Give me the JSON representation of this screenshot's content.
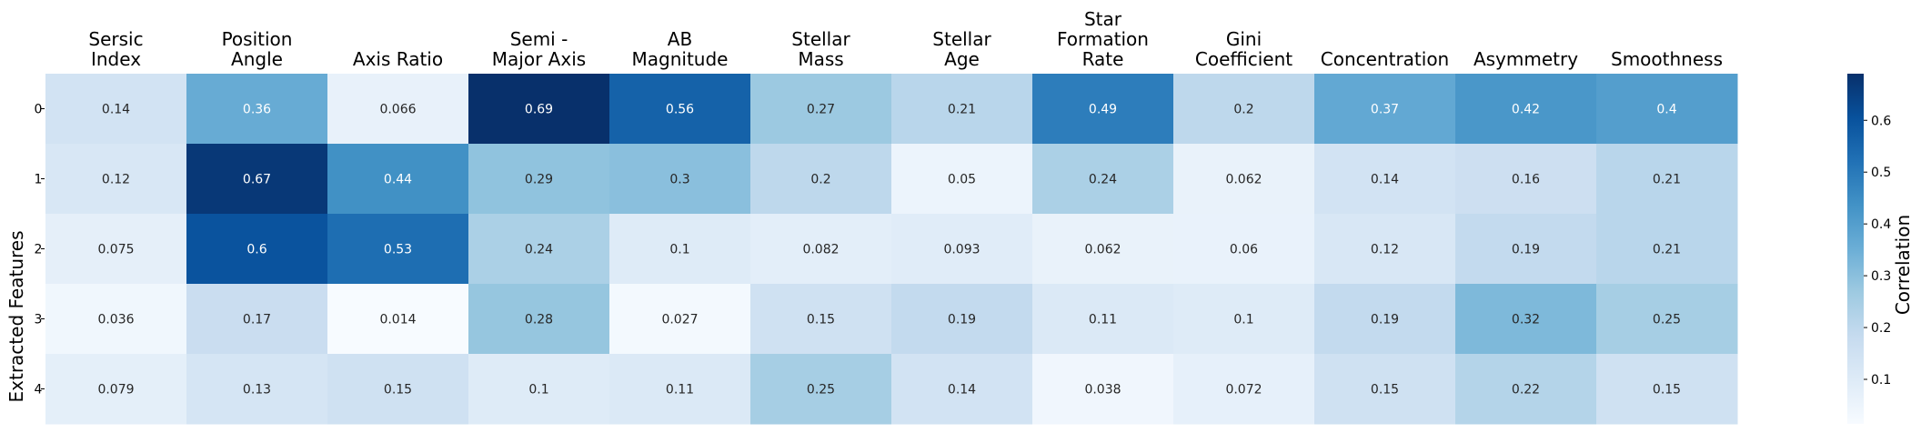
{
  "chart_data": {
    "type": "heatmap",
    "title": "",
    "xlabel": "",
    "ylabel": "Extracted Features",
    "columns": [
      [
        "Sersic",
        "Index"
      ],
      [
        "Position",
        "Angle"
      ],
      [
        "Axis Ratio"
      ],
      [
        "Semi -",
        "Major Axis"
      ],
      [
        "AB",
        "Magnitude"
      ],
      [
        "Stellar",
        "Mass"
      ],
      [
        "Stellar",
        "Age"
      ],
      [
        "Star",
        "Formation",
        "Rate"
      ],
      [
        "Gini",
        "Coefficient"
      ],
      [
        "Concentration"
      ],
      [
        "Asymmetry"
      ],
      [
        "Smoothness"
      ]
    ],
    "rows": [
      "0",
      "1",
      "2",
      "3",
      "4"
    ],
    "values": [
      [
        0.14,
        0.36,
        0.066,
        0.69,
        0.56,
        0.27,
        0.21,
        0.49,
        0.2,
        0.37,
        0.42,
        0.4
      ],
      [
        0.12,
        0.67,
        0.44,
        0.29,
        0.3,
        0.2,
        0.05,
        0.24,
        0.062,
        0.14,
        0.16,
        0.21
      ],
      [
        0.075,
        0.6,
        0.53,
        0.24,
        0.1,
        0.082,
        0.093,
        0.062,
        0.06,
        0.12,
        0.19,
        0.21
      ],
      [
        0.036,
        0.17,
        0.014,
        0.28,
        0.027,
        0.15,
        0.19,
        0.11,
        0.1,
        0.19,
        0.32,
        0.25
      ],
      [
        0.079,
        0.13,
        0.15,
        0.1,
        0.11,
        0.25,
        0.14,
        0.038,
        0.072,
        0.15,
        0.22,
        0.15
      ]
    ],
    "colorbar": {
      "label": "Correlation",
      "colormap": "Blues",
      "range": [
        0.014,
        0.69
      ],
      "ticks": [
        "0.1",
        "0.2",
        "0.3",
        "0.4",
        "0.5",
        "0.6"
      ]
    },
    "legend": "right",
    "grid": false
  }
}
